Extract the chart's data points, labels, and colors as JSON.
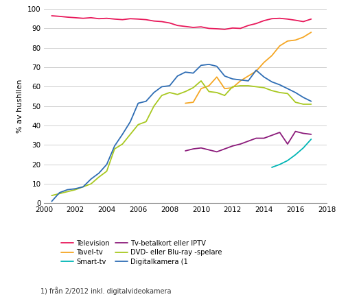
{
  "ylabel": "% av hushllen",
  "footnote": "1) från 2/2012 inkl. digitalvideokamera",
  "background_color": "#ffffff",
  "grid_color": "#d0d0d0",
  "series": {
    "Television": {
      "color": "#e8185a",
      "data": [
        [
          2000.5,
          96.5
        ],
        [
          2001.0,
          96.2
        ],
        [
          2001.5,
          95.8
        ],
        [
          2002.0,
          95.5
        ],
        [
          2002.5,
          95.2
        ],
        [
          2003.0,
          95.5
        ],
        [
          2003.5,
          95.0
        ],
        [
          2004.0,
          95.2
        ],
        [
          2004.5,
          94.8
        ],
        [
          2005.0,
          94.5
        ],
        [
          2005.5,
          95.0
        ],
        [
          2006.0,
          94.8
        ],
        [
          2006.5,
          94.5
        ],
        [
          2007.0,
          93.8
        ],
        [
          2007.5,
          93.5
        ],
        [
          2008.0,
          92.8
        ],
        [
          2008.5,
          91.5
        ],
        [
          2009.0,
          91.0
        ],
        [
          2009.5,
          90.5
        ],
        [
          2010.0,
          90.8
        ],
        [
          2010.5,
          90.0
        ],
        [
          2011.0,
          89.8
        ],
        [
          2011.5,
          89.5
        ],
        [
          2012.0,
          90.2
        ],
        [
          2012.5,
          90.0
        ],
        [
          2013.0,
          91.5
        ],
        [
          2013.5,
          92.5
        ],
        [
          2014.0,
          94.0
        ],
        [
          2014.5,
          95.0
        ],
        [
          2015.0,
          95.2
        ],
        [
          2015.5,
          94.8
        ],
        [
          2016.0,
          94.2
        ],
        [
          2016.5,
          93.5
        ],
        [
          2017.0,
          94.8
        ]
      ]
    },
    "Tavel-tv": {
      "color": "#f5a623",
      "data": [
        [
          2009.0,
          51.5
        ],
        [
          2009.5,
          52.0
        ],
        [
          2010.0,
          59.0
        ],
        [
          2010.5,
          60.5
        ],
        [
          2011.0,
          65.0
        ],
        [
          2011.5,
          59.0
        ],
        [
          2012.0,
          59.5
        ],
        [
          2012.5,
          63.0
        ],
        [
          2013.0,
          65.5
        ],
        [
          2013.5,
          68.0
        ],
        [
          2014.0,
          72.5
        ],
        [
          2014.5,
          76.0
        ],
        [
          2015.0,
          81.0
        ],
        [
          2015.5,
          83.5
        ],
        [
          2016.0,
          84.0
        ],
        [
          2016.5,
          85.5
        ],
        [
          2017.0,
          88.0
        ]
      ]
    },
    "Smart-tv": {
      "color": "#00b5b5",
      "data": [
        [
          2014.5,
          18.5
        ],
        [
          2015.0,
          20.0
        ],
        [
          2015.5,
          22.0
        ],
        [
          2016.0,
          25.0
        ],
        [
          2016.5,
          28.5
        ],
        [
          2017.0,
          33.0
        ]
      ]
    },
    "Tv-betalkort eller IPTV": {
      "color": "#8b1a7a",
      "data": [
        [
          2009.0,
          27.0
        ],
        [
          2009.5,
          28.0
        ],
        [
          2010.0,
          28.5
        ],
        [
          2010.5,
          27.5
        ],
        [
          2011.0,
          26.5
        ],
        [
          2011.5,
          28.0
        ],
        [
          2012.0,
          29.5
        ],
        [
          2012.5,
          30.5
        ],
        [
          2013.0,
          32.0
        ],
        [
          2013.5,
          33.5
        ],
        [
          2014.0,
          33.5
        ],
        [
          2014.5,
          35.0
        ],
        [
          2015.0,
          36.5
        ],
        [
          2015.5,
          30.5
        ],
        [
          2016.0,
          37.0
        ],
        [
          2016.5,
          36.0
        ],
        [
          2017.0,
          35.5
        ]
      ]
    },
    "DVD- eller Blu-ray -spelare": {
      "color": "#a8c820",
      "data": [
        [
          2000.5,
          4.0
        ],
        [
          2001.0,
          5.0
        ],
        [
          2001.5,
          6.0
        ],
        [
          2002.0,
          7.0
        ],
        [
          2002.5,
          8.5
        ],
        [
          2003.0,
          10.0
        ],
        [
          2003.5,
          13.5
        ],
        [
          2004.0,
          16.5
        ],
        [
          2004.5,
          28.0
        ],
        [
          2005.0,
          30.5
        ],
        [
          2005.5,
          35.5
        ],
        [
          2006.0,
          40.5
        ],
        [
          2006.5,
          42.0
        ],
        [
          2007.0,
          50.0
        ],
        [
          2007.5,
          55.5
        ],
        [
          2008.0,
          57.0
        ],
        [
          2008.5,
          56.0
        ],
        [
          2009.0,
          57.5
        ],
        [
          2009.5,
          59.5
        ],
        [
          2010.0,
          63.0
        ],
        [
          2010.5,
          57.5
        ],
        [
          2011.0,
          57.0
        ],
        [
          2011.5,
          55.5
        ],
        [
          2012.0,
          60.0
        ],
        [
          2012.5,
          60.5
        ],
        [
          2013.0,
          60.5
        ],
        [
          2013.5,
          60.0
        ],
        [
          2014.0,
          59.5
        ],
        [
          2014.5,
          58.0
        ],
        [
          2015.0,
          57.0
        ],
        [
          2015.5,
          56.5
        ],
        [
          2016.0,
          52.0
        ],
        [
          2016.5,
          51.0
        ],
        [
          2017.0,
          51.0
        ]
      ]
    },
    "Digitalkamera (1": {
      "color": "#2e6db4",
      "data": [
        [
          2000.5,
          1.0
        ],
        [
          2001.0,
          5.5
        ],
        [
          2001.5,
          7.0
        ],
        [
          2002.0,
          7.5
        ],
        [
          2002.5,
          8.5
        ],
        [
          2003.0,
          12.5
        ],
        [
          2003.5,
          15.5
        ],
        [
          2004.0,
          20.0
        ],
        [
          2004.5,
          29.5
        ],
        [
          2005.0,
          35.5
        ],
        [
          2005.5,
          42.0
        ],
        [
          2006.0,
          51.5
        ],
        [
          2006.5,
          52.5
        ],
        [
          2007.0,
          57.0
        ],
        [
          2007.5,
          60.0
        ],
        [
          2008.0,
          60.5
        ],
        [
          2008.5,
          65.5
        ],
        [
          2009.0,
          67.5
        ],
        [
          2009.5,
          67.0
        ],
        [
          2010.0,
          71.0
        ],
        [
          2010.5,
          71.5
        ],
        [
          2011.0,
          70.5
        ],
        [
          2011.5,
          65.5
        ],
        [
          2012.0,
          64.0
        ],
        [
          2012.5,
          63.5
        ],
        [
          2013.0,
          63.0
        ],
        [
          2013.5,
          68.5
        ],
        [
          2014.0,
          65.0
        ],
        [
          2014.5,
          62.5
        ],
        [
          2015.0,
          61.0
        ],
        [
          2015.5,
          59.0
        ],
        [
          2016.0,
          57.0
        ],
        [
          2016.5,
          54.5
        ],
        [
          2017.0,
          52.5
        ]
      ]
    }
  },
  "legend_order": [
    "Television",
    "Tavel-tv",
    "Smart-tv",
    "Tv-betalkort eller IPTV",
    "DVD- eller Blu-ray -spelare",
    "Digitalkamera (1"
  ],
  "xlim": [
    2000,
    2018
  ],
  "ylim": [
    0,
    100
  ],
  "xticks": [
    2000,
    2002,
    2004,
    2006,
    2008,
    2010,
    2012,
    2014,
    2016,
    2018
  ],
  "yticks": [
    0,
    10,
    20,
    30,
    40,
    50,
    60,
    70,
    80,
    90,
    100
  ]
}
